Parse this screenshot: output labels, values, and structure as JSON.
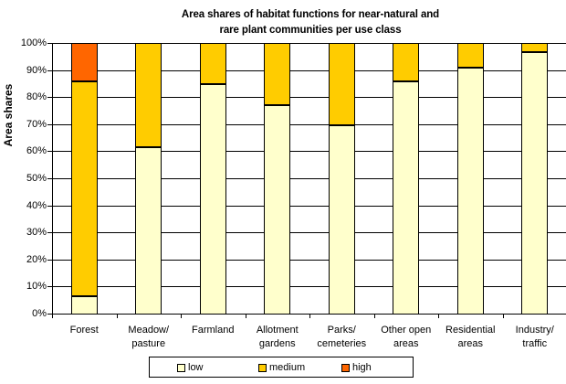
{
  "chart_data": {
    "type": "bar",
    "stacked": true,
    "percent_stacked": true,
    "title": "Area shares of habitat functions for near-natural and rare plant communities per use class",
    "title_lines": [
      "Area shares of habitat functions for near-natural and",
      "rare plant communities per use class"
    ],
    "xlabel": "",
    "ylabel": "Area shares",
    "ylim": [
      0,
      100
    ],
    "y_ticks": [
      "0%",
      "10%",
      "20%",
      "30%",
      "40%",
      "50%",
      "60%",
      "70%",
      "80%",
      "90%",
      "100%"
    ],
    "grid": true,
    "legend_position": "bottom",
    "categories": [
      "Forest",
      "Meadow/ pasture",
      "Farmland",
      "Allotment gardens",
      "Parks/ cemeteries",
      "Other open areas",
      "Residential areas",
      "Industry/ traffic"
    ],
    "category_lines": [
      [
        "Forest"
      ],
      [
        "Meadow/",
        "pasture"
      ],
      [
        "Farmland"
      ],
      [
        "Allotment",
        "gardens"
      ],
      [
        "Parks/",
        "cemeteries"
      ],
      [
        "Other open",
        "areas"
      ],
      [
        "Residential",
        "areas"
      ],
      [
        "Industry/",
        "traffic"
      ]
    ],
    "series": [
      {
        "name": "low",
        "color": "#FFFFCC",
        "values": [
          6.7,
          61.7,
          85.3,
          77.5,
          69.8,
          86.3,
          91.2,
          96.9
        ]
      },
      {
        "name": "medium",
        "color": "#FFCC00",
        "values": [
          79.6,
          38.3,
          14.7,
          22.5,
          30.2,
          13.7,
          8.8,
          3.1
        ]
      },
      {
        "name": "high",
        "color": "#FF6600",
        "values": [
          13.7,
          0,
          0,
          0,
          0,
          0,
          0,
          0
        ]
      }
    ]
  },
  "legend": {
    "items": [
      {
        "label": "low",
        "color": "#FFFFCC"
      },
      {
        "label": "medium",
        "color": "#FFCC00"
      },
      {
        "label": "high",
        "color": "#FF6600"
      }
    ]
  }
}
